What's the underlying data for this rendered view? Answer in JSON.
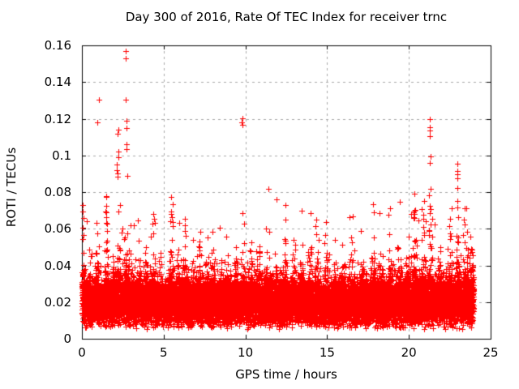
{
  "chart_data": {
    "type": "scatter",
    "title": "Day 300 of 2016, Rate Of TEC Index for receiver trnc",
    "xlabel": "GPS time / hours",
    "ylabel": "ROTI / TECUs",
    "xlim": [
      0,
      25
    ],
    "ylim": [
      0,
      0.16
    ],
    "xticks": [
      0,
      5,
      10,
      15,
      20,
      25
    ],
    "xtick_labels": [
      "0",
      "5",
      "10",
      "15",
      "20",
      "25"
    ],
    "yticks": [
      0,
      0.02,
      0.04,
      0.06,
      0.08,
      0.1,
      0.12,
      0.14,
      0.16
    ],
    "ytick_labels": [
      "0",
      "0.02",
      "0.04",
      "0.06",
      "0.08",
      "0.1",
      "0.12",
      "0.14",
      "0.16"
    ],
    "grid": true,
    "legend": "none",
    "marker": "plus",
    "marker_color": "#ff0000",
    "grid_color": "#a9a9a9",
    "border_color": "#000000",
    "series_name": "ROTI",
    "band": {
      "comment": "dense baseline band of ROTI values; ~15000 points 0-24h, core 0.006-0.035 TECU, spiky tails to ~0.08",
      "n": 15000,
      "seed": 3002016,
      "x_start": 0.0,
      "x_end": 23.96,
      "y_min": 0.0055,
      "core_base": 0.0118,
      "core_env": 0.0016,
      "tail_prob": 0.3,
      "tail_scale": 0.0046,
      "cap": 0.082,
      "env_base": 0.75,
      "spikes": [
        [
          0.08,
          0.08,
          2.0
        ],
        [
          0.5,
          0.1,
          0.9
        ],
        [
          0.95,
          0.09,
          1.6
        ],
        [
          1.5,
          0.09,
          1.8
        ],
        [
          1.95,
          0.07,
          1.0
        ],
        [
          2.25,
          0.09,
          2.2
        ],
        [
          2.7,
          0.09,
          2.5
        ],
        [
          3.1,
          0.08,
          1.1
        ],
        [
          3.5,
          0.09,
          1.5
        ],
        [
          3.9,
          0.07,
          1.1
        ],
        [
          4.35,
          0.09,
          1.6
        ],
        [
          4.8,
          0.07,
          1.1
        ],
        [
          5.45,
          0.1,
          2.4
        ],
        [
          5.9,
          0.07,
          1.2
        ],
        [
          6.3,
          0.09,
          1.6
        ],
        [
          6.8,
          0.08,
          1.2
        ],
        [
          7.2,
          0.09,
          1.5
        ],
        [
          7.65,
          0.08,
          1.3
        ],
        [
          8.0,
          0.09,
          1.6
        ],
        [
          8.5,
          0.09,
          1.4
        ],
        [
          8.95,
          0.08,
          1.3
        ],
        [
          9.4,
          0.09,
          1.5
        ],
        [
          9.85,
          0.09,
          1.8
        ],
        [
          10.35,
          0.08,
          1.2
        ],
        [
          10.8,
          0.09,
          1.4
        ],
        [
          11.35,
          0.1,
          1.7
        ],
        [
          11.9,
          0.08,
          1.2
        ],
        [
          12.4,
          0.09,
          1.5
        ],
        [
          12.95,
          0.08,
          1.2
        ],
        [
          13.45,
          0.09,
          1.4
        ],
        [
          13.95,
          0.08,
          1.1
        ],
        [
          14.4,
          0.09,
          1.5
        ],
        [
          14.95,
          0.08,
          1.3
        ],
        [
          15.45,
          0.09,
          1.3
        ],
        [
          16.0,
          0.08,
          1.1
        ],
        [
          16.5,
          0.09,
          1.3
        ],
        [
          17.1,
          0.09,
          1.4
        ],
        [
          17.8,
          0.1,
          1.7
        ],
        [
          18.3,
          0.09,
          1.6
        ],
        [
          18.85,
          0.08,
          1.3
        ],
        [
          19.4,
          0.09,
          1.4
        ],
        [
          19.9,
          0.09,
          1.5
        ],
        [
          20.35,
          0.12,
          2.1
        ],
        [
          20.85,
          0.1,
          2.0
        ],
        [
          21.3,
          0.1,
          2.2
        ],
        [
          21.9,
          0.09,
          1.6
        ],
        [
          22.5,
          0.1,
          1.8
        ],
        [
          23.0,
          0.1,
          2.1
        ],
        [
          23.5,
          0.12,
          2.0
        ],
        [
          23.85,
          0.08,
          1.7
        ]
      ]
    },
    "outliers": [
      [
        0.05,
        0.073
      ],
      [
        0.05,
        0.0695
      ],
      [
        0.08,
        0.066
      ],
      [
        0.03,
        0.0605
      ],
      [
        0.28,
        0.0643
      ],
      [
        0.94,
        0.118
      ],
      [
        1.03,
        0.1304
      ],
      [
        0.94,
        0.0573
      ],
      [
        1.5,
        0.0725
      ],
      [
        1.48,
        0.069
      ],
      [
        1.5,
        0.0663
      ],
      [
        2.33,
        0.073
      ],
      [
        2.23,
        0.0695
      ],
      [
        2.18,
        0.1117
      ],
      [
        2.23,
        0.1139
      ],
      [
        2.23,
        0.1021
      ],
      [
        2.23,
        0.0989
      ],
      [
        2.15,
        0.095
      ],
      [
        2.15,
        0.0921
      ],
      [
        2.2,
        0.0902
      ],
      [
        2.18,
        0.0885
      ],
      [
        2.5,
        0.0602
      ],
      [
        2.68,
        0.1568
      ],
      [
        2.68,
        0.1528
      ],
      [
        2.68,
        0.1304
      ],
      [
        2.73,
        0.119
      ],
      [
        2.73,
        0.1147
      ],
      [
        2.73,
        0.1061
      ],
      [
        2.73,
        0.1036
      ],
      [
        2.76,
        0.089
      ],
      [
        4.33,
        0.0628
      ],
      [
        4.41,
        0.0654
      ],
      [
        5.45,
        0.0775
      ],
      [
        5.57,
        0.0735
      ],
      [
        5.45,
        0.0695
      ],
      [
        5.45,
        0.068
      ],
      [
        5.5,
        0.0663
      ],
      [
        5.42,
        0.064
      ],
      [
        5.55,
        0.0615
      ],
      [
        6.31,
        0.0654
      ],
      [
        6.31,
        0.062
      ],
      [
        9.78,
        0.118
      ],
      [
        9.8,
        0.1166
      ],
      [
        9.82,
        0.1202
      ],
      [
        9.84,
        0.0684
      ],
      [
        9.9,
        0.0626
      ],
      [
        16.35,
        0.0665
      ],
      [
        20.15,
        0.068
      ],
      [
        20.35,
        0.066
      ],
      [
        20.6,
        0.0645
      ],
      [
        20.9,
        0.0675
      ],
      [
        21.05,
        0.064
      ],
      [
        21.45,
        0.0655
      ],
      [
        21.6,
        0.0625
      ],
      [
        21.3,
        0.12
      ],
      [
        21.3,
        0.1154
      ],
      [
        21.3,
        0.1137
      ],
      [
        21.3,
        0.1107
      ],
      [
        21.32,
        0.0996
      ],
      [
        21.3,
        0.0957
      ],
      [
        21.35,
        0.0817
      ],
      [
        22.97,
        0.0956
      ],
      [
        22.97,
        0.0913
      ],
      [
        22.97,
        0.0898
      ],
      [
        22.95,
        0.0874
      ],
      [
        22.97,
        0.0824
      ],
      [
        22.97,
        0.075
      ],
      [
        22.95,
        0.0716
      ],
      [
        23.4,
        0.0713
      ],
      [
        23.5,
        0.071
      ]
    ]
  }
}
